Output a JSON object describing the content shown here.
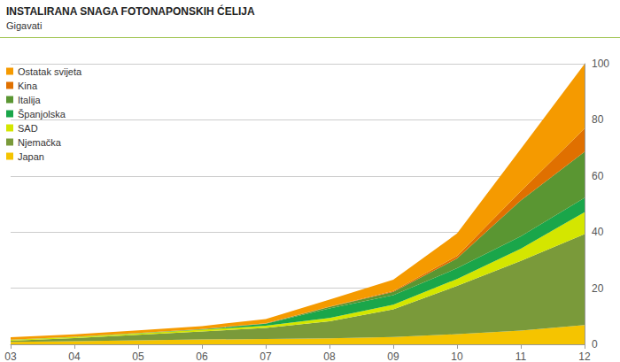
{
  "chart_data": {
    "type": "area",
    "title": "INSTALIRANA SNAGA FOTONAPONSKIH ĆELIJA",
    "subtitle": "Gigavati",
    "categories": [
      "03",
      "04",
      "05",
      "06",
      "07",
      "08",
      "09",
      "10",
      "11",
      "12"
    ],
    "series": [
      {
        "name": "Japan",
        "color": "#f5c400",
        "values": [
          0.9,
          1.1,
          1.4,
          1.7,
          1.9,
          2.1,
          2.6,
          3.6,
          4.9,
          6.9
        ]
      },
      {
        "name": "Njemačka",
        "color": "#7a9a3a",
        "values": [
          0.4,
          1.1,
          2.0,
          2.9,
          3.9,
          6.1,
          9.9,
          17.2,
          24.8,
          32.4
        ]
      },
      {
        "name": "SAD",
        "color": "#d4e600",
        "values": [
          0.3,
          0.4,
          0.5,
          0.6,
          0.8,
          1.2,
          1.6,
          2.5,
          4.4,
          7.8
        ]
      },
      {
        "name": "Španjolska",
        "color": "#1aa64a",
        "values": [
          0.01,
          0.02,
          0.05,
          0.15,
          0.7,
          3.4,
          3.4,
          3.8,
          4.4,
          5.1
        ]
      },
      {
        "name": "Italija",
        "color": "#5a9632",
        "values": [
          0.03,
          0.03,
          0.04,
          0.05,
          0.1,
          0.5,
          1.2,
          3.5,
          12.8,
          16.4
        ]
      },
      {
        "name": "Kina",
        "color": "#e07000",
        "values": [
          0.05,
          0.06,
          0.07,
          0.08,
          0.1,
          0.1,
          0.3,
          0.9,
          3.3,
          8.3
        ]
      },
      {
        "name": "Ostatak svijeta",
        "color": "#f59a00",
        "values": [
          0.8,
          0.8,
          0.9,
          1.0,
          1.5,
          2.5,
          4.0,
          8.0,
          15.0,
          23.0
        ]
      }
    ],
    "ylim": [
      0,
      100
    ],
    "yticks": [
      0,
      20,
      40,
      60,
      80,
      100
    ],
    "stacked": true,
    "grid": true,
    "legend": "upper left"
  }
}
